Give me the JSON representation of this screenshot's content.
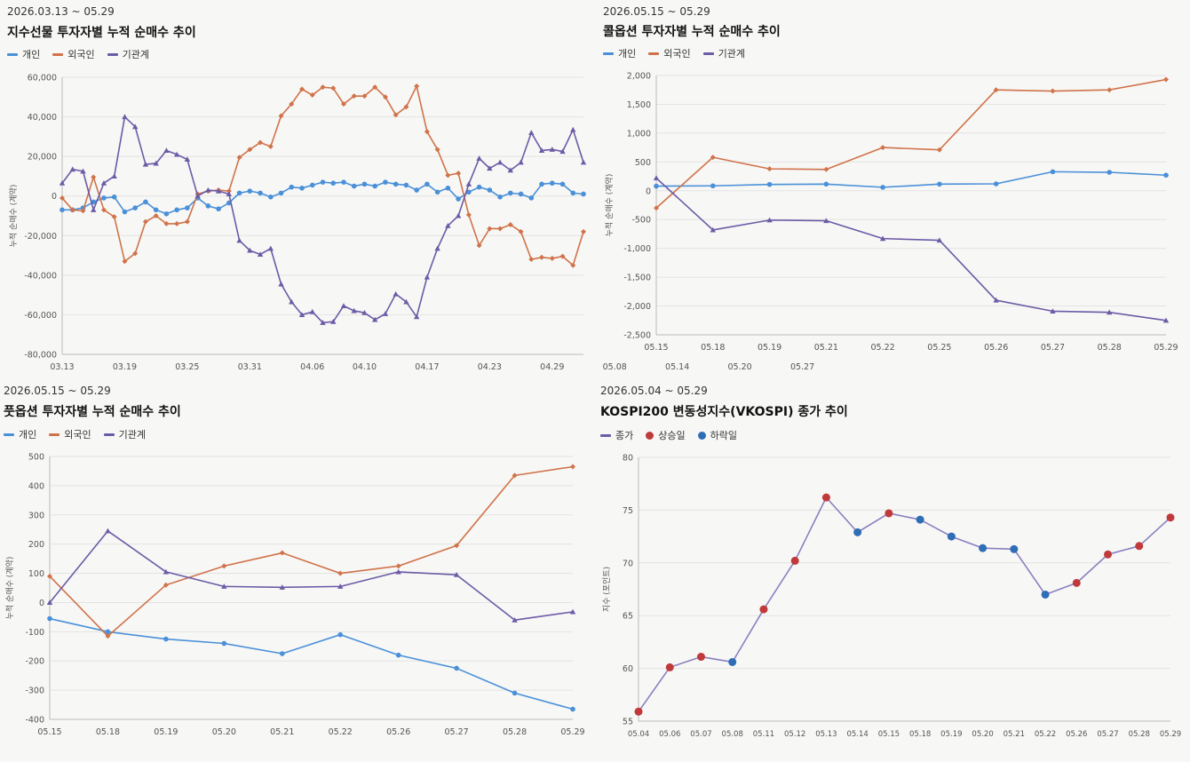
{
  "chart_data": [
    {
      "type": "line",
      "date_range": "2026.03.13 ~ 05.29",
      "title": "지수선물 투자자별 누적 순매수 추이",
      "ylabel": "누적 순매수 (계약)",
      "ylim": [
        -80000,
        60000
      ],
      "yticks": [
        60000,
        40000,
        20000,
        0,
        -20000,
        -40000,
        -60000,
        -80000
      ],
      "ytick_labels": [
        "60,000",
        "40,000",
        "20,000",
        "0",
        "-20,000",
        "-40,000",
        "-60,000",
        "-80,000"
      ],
      "xtick_labels": [
        "03.13",
        "03.19",
        "03.25",
        "03.31",
        "04.06",
        "04.10",
        "04.17",
        "04.23",
        "04.29",
        "05.08",
        "05.14",
        "05.20",
        "05.27"
      ],
      "xtick_index": [
        0,
        6,
        12,
        18,
        24,
        29,
        35,
        41,
        47,
        53,
        59,
        65,
        71
      ],
      "legend_position": "top-left",
      "grid": true,
      "series": [
        {
          "name": "개인",
          "color": "#4a90d9",
          "marker": "circle",
          "values": [
            -7000,
            -7000,
            -6000,
            -3000,
            -1000,
            -500,
            -8000,
            -6000,
            -3000,
            -7000,
            -9000,
            -7000,
            -6000,
            -1000,
            -5000,
            -6500,
            -3500,
            1500,
            2500,
            1500,
            -500,
            1500,
            4500,
            4000,
            5500,
            7000,
            6500,
            7000,
            5000,
            6000,
            5000,
            7000,
            6000,
            5500,
            3000,
            6000,
            2000,
            4000,
            -1500,
            2000,
            4500,
            3000,
            -500,
            1500,
            1000,
            -1000,
            6000,
            6500,
            6000,
            1500,
            1000
          ]
        },
        {
          "name": "외국인",
          "color": "#d0734a",
          "marker": "diamond",
          "values": [
            -1000,
            -7000,
            -7500,
            9500,
            -7000,
            -10500,
            -33000,
            -29000,
            -13000,
            -10000,
            -14000,
            -14000,
            -13000,
            1000,
            2500,
            3000,
            2500,
            19500,
            23500,
            27000,
            25000,
            40500,
            46500,
            54000,
            51000,
            55000,
            54500,
            46500,
            50500,
            50500,
            55000,
            50000,
            41000,
            45000,
            55500,
            32500,
            23500,
            10500,
            11500,
            -9500,
            -25000,
            -16500,
            -16500,
            -14500,
            -18000,
            -32000,
            -31000,
            -31500,
            -30500,
            -35000,
            -18000
          ]
        },
        {
          "name": "기관계",
          "color": "#6c5ba6",
          "marker": "triangle",
          "values": [
            6500,
            13500,
            12500,
            -7000,
            6500,
            10000,
            40000,
            35000,
            16000,
            16500,
            23000,
            21000,
            18500,
            0,
            3000,
            2500,
            1000,
            -22500,
            -27500,
            -29500,
            -26500,
            -44500,
            -53500,
            -60000,
            -58500,
            -64000,
            -63500,
            -55500,
            -58000,
            -59000,
            -62500,
            -59500,
            -49500,
            -53500,
            -61000,
            -41000,
            -26500,
            -15000,
            -10000,
            6000,
            19000,
            14000,
            17000,
            13000,
            17000,
            32000,
            23000,
            23500,
            22500,
            33500,
            17000
          ]
        }
      ]
    },
    {
      "type": "line",
      "date_range": "2026.05.15 ~ 05.29",
      "title": "콜옵션 투자자별 누적 순매수 추이",
      "ylabel": "누적 순매수 (계약)",
      "ylim": [
        -2500,
        2000
      ],
      "yticks": [
        2000,
        1500,
        1000,
        500,
        0,
        -500,
        -1000,
        -1500,
        -2000,
        -2500
      ],
      "ytick_labels": [
        "2,000",
        "1,500",
        "1,000",
        "500",
        "0",
        "-500",
        "-1,000",
        "-1,500",
        "-2,000",
        "-2,500"
      ],
      "categories": [
        "05.15",
        "05.18",
        "05.19",
        "05.21",
        "05.22",
        "05.25",
        "05.26",
        "05.27",
        "05.28",
        "05.29"
      ],
      "legend_position": "top-left",
      "grid": true,
      "series": [
        {
          "name": "개인",
          "color": "#4a90d9",
          "marker": "circle",
          "values": [
            80,
            85,
            110,
            115,
            60,
            115,
            120,
            330,
            320,
            270
          ]
        },
        {
          "name": "외국인",
          "color": "#d0734a",
          "marker": "diamond",
          "values": [
            -300,
            580,
            380,
            370,
            750,
            710,
            1750,
            1730,
            1750,
            1930
          ]
        },
        {
          "name": "기관계",
          "color": "#6c5ba6",
          "marker": "triangle",
          "values": [
            220,
            -680,
            -510,
            -520,
            -830,
            -860,
            -1900,
            -2090,
            -2110,
            -2250
          ]
        }
      ]
    },
    {
      "type": "line",
      "date_range": "2026.05.15 ~ 05.29",
      "title": "풋옵션 투자자별 누적 순매수 추이",
      "ylabel": "누적 순매수 (계약)",
      "ylim": [
        -400,
        500
      ],
      "yticks": [
        500,
        400,
        300,
        200,
        100,
        0,
        -100,
        -200,
        -300,
        -400
      ],
      "ytick_labels": [
        "500",
        "400",
        "300",
        "200",
        "100",
        "0",
        "-100",
        "-200",
        "-300",
        "-400"
      ],
      "categories": [
        "05.15",
        "05.18",
        "05.19",
        "05.20",
        "05.21",
        "05.22",
        "05.26",
        "05.27",
        "05.28",
        "05.29"
      ],
      "legend_position": "top-left",
      "grid": true,
      "series": [
        {
          "name": "개인",
          "color": "#4a90d9",
          "marker": "circle",
          "values": [
            -55,
            -100,
            -125,
            -140,
            -175,
            -110,
            -180,
            -225,
            -310,
            -365
          ]
        },
        {
          "name": "외국인",
          "color": "#d0734a",
          "marker": "diamond",
          "values": [
            90,
            -115,
            60,
            125,
            170,
            100,
            125,
            195,
            435,
            465
          ]
        },
        {
          "name": "기관계",
          "color": "#6c5ba6",
          "marker": "triangle",
          "values": [
            0,
            245,
            105,
            55,
            52,
            55,
            105,
            95,
            -60,
            -32
          ]
        }
      ]
    },
    {
      "type": "line",
      "date_range": "2026.05.04 ~ 05.29",
      "title": "KOSPI200 변동성지수(VKOSPI) 종가 추이",
      "ylabel": "지수 (포인트)",
      "ylim": [
        55,
        80
      ],
      "yticks": [
        80,
        75,
        70,
        65,
        60,
        55
      ],
      "ytick_labels": [
        "80",
        "75",
        "70",
        "65",
        "60",
        "55"
      ],
      "categories": [
        "05.04",
        "05.06",
        "05.07",
        "05.08",
        "05.11",
        "05.12",
        "05.13",
        "05.14",
        "05.15",
        "05.18",
        "05.19",
        "05.20",
        "05.21",
        "05.22",
        "05.26",
        "05.27",
        "05.28",
        "05.29"
      ],
      "legend_position": "top-left",
      "grid": true,
      "legend": [
        {
          "name": "종가",
          "kind": "line",
          "color": "#6c5ba6"
        },
        {
          "name": "상승일",
          "kind": "dot",
          "color": "#c0393b"
        },
        {
          "name": "하락일",
          "kind": "dot",
          "color": "#2f6db5"
        }
      ],
      "series": [
        {
          "name": "종가",
          "color": "#8b7fc0",
          "values": [
            55.9,
            60.1,
            61.1,
            60.6,
            65.6,
            70.2,
            76.2,
            72.9,
            74.7,
            74.1,
            72.5,
            71.4,
            71.3,
            67.0,
            68.1,
            70.8,
            71.6,
            74.3
          ]
        }
      ],
      "point_status": [
        "up",
        "up",
        "up",
        "down",
        "up",
        "up",
        "up",
        "down",
        "up",
        "down",
        "down",
        "down",
        "down",
        "down",
        "up",
        "up",
        "up",
        "up"
      ],
      "status_colors": {
        "up": "#c0393b",
        "down": "#2f6db5"
      }
    }
  ]
}
